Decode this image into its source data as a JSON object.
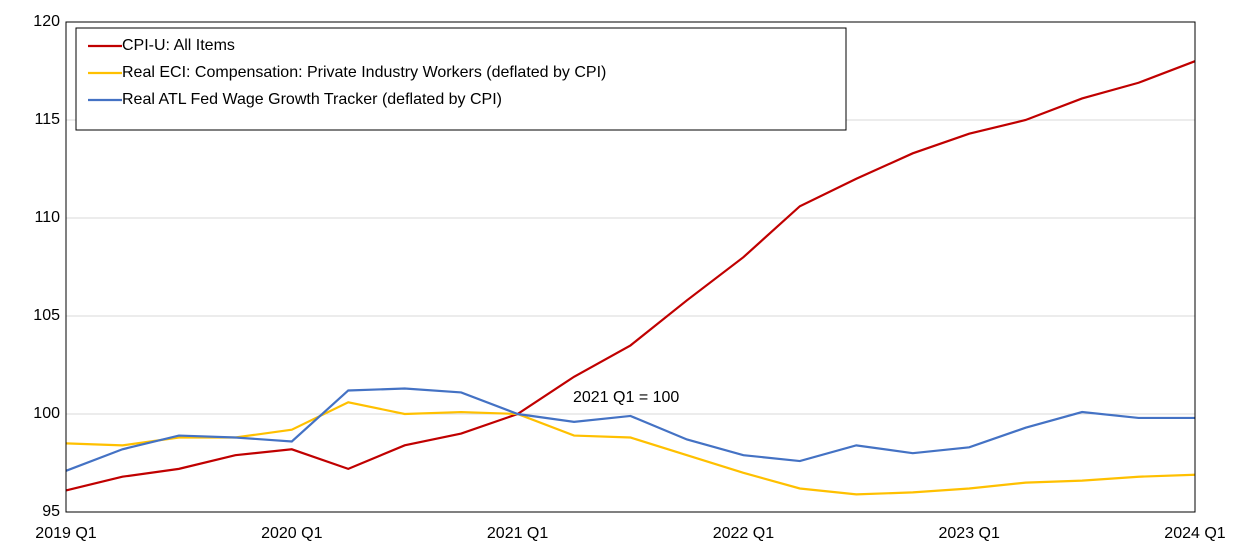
{
  "chart_data": {
    "type": "line",
    "categories": [
      "2019 Q1",
      null,
      null,
      null,
      "2020 Q1",
      null,
      null,
      null,
      "2021 Q1",
      null,
      null,
      null,
      "2022 Q1",
      null,
      null,
      null,
      "2023 Q1",
      null,
      null,
      null,
      "2024 Q1"
    ],
    "series": [
      {
        "name": "CPI-U: All Items",
        "color": "#c00000",
        "values": [
          96.1,
          96.8,
          97.2,
          97.9,
          98.2,
          97.2,
          98.4,
          99.0,
          100,
          101.9,
          103.5,
          105.8,
          108.0,
          110.6,
          112.0,
          113.3,
          114.3,
          115.0,
          116.1,
          116.9,
          118.0
        ]
      },
      {
        "name": "Real ECI: Compensation: Private Industry Workers (deflated by CPI)",
        "color": "#ffc000",
        "values": [
          98.5,
          98.4,
          98.8,
          98.8,
          99.2,
          100.6,
          100.0,
          100.1,
          100,
          98.9,
          98.8,
          97.9,
          97.0,
          96.2,
          95.9,
          96.0,
          96.2,
          96.5,
          96.6,
          96.8,
          96.9
        ]
      },
      {
        "name": "Real ATL Fed Wage Growth Tracker (deflated by CPI)",
        "color": "#4472c4",
        "values": [
          97.1,
          98.2,
          98.9,
          98.8,
          98.6,
          101.2,
          101.3,
          101.1,
          100,
          99.6,
          99.9,
          98.7,
          97.9,
          97.6,
          98.4,
          98.0,
          98.3,
          99.3,
          100.1,
          99.8,
          99.8
        ]
      }
    ],
    "annotation": "2021 Q1 = 100",
    "ylim": [
      95,
      120
    ],
    "yticks": [
      95,
      100,
      105,
      110,
      115,
      120
    ],
    "grid": true
  }
}
